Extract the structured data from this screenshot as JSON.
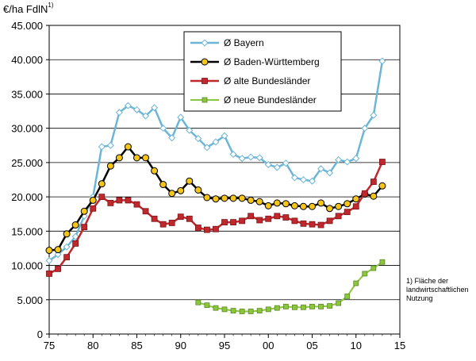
{
  "unit": {
    "text": "€/ha FdlN",
    "sup": "1)"
  },
  "footnote": [
    "1) Fläche der",
    "landwirtschaftlichen",
    "Nutzung"
  ],
  "chart_data": {
    "type": "line",
    "ylim": [
      0,
      45000
    ],
    "xlim": [
      1975,
      2015
    ],
    "grid": true,
    "legend_position": "top-right",
    "xticks": [
      {
        "value": 1975,
        "label": "75"
      },
      {
        "value": 1980,
        "label": "80"
      },
      {
        "value": 1985,
        "label": "85"
      },
      {
        "value": 1990,
        "label": "90"
      },
      {
        "value": 1995,
        "label": "95"
      },
      {
        "value": 2000,
        "label": "00"
      },
      {
        "value": 2005,
        "label": "05"
      },
      {
        "value": 2010,
        "label": "10"
      },
      {
        "value": 2015,
        "label": "15"
      }
    ],
    "yticks": [
      {
        "value": 0,
        "label": "0"
      },
      {
        "value": 5000,
        "label": "5.000"
      },
      {
        "value": 10000,
        "label": "10.000"
      },
      {
        "value": 15000,
        "label": "15.000"
      },
      {
        "value": 20000,
        "label": "20.000"
      },
      {
        "value": 25000,
        "label": "25.000"
      },
      {
        "value": 30000,
        "label": "30.000"
      },
      {
        "value": 35000,
        "label": "35.000"
      },
      {
        "value": 40000,
        "label": "40.000"
      },
      {
        "value": 45000,
        "label": "45.000"
      }
    ],
    "series": [
      {
        "name": "Ø Bayern",
        "color": "#6BB5D6",
        "marker": "diamond",
        "marker_fill": "#ffffff",
        "marker_stroke": "#6BB5D6",
        "x": [
          1975,
          1976,
          1977,
          1978,
          1979,
          1980,
          1981,
          1982,
          1983,
          1984,
          1985,
          1986,
          1987,
          1988,
          1989,
          1990,
          1991,
          1992,
          1993,
          1994,
          1995,
          1996,
          1997,
          1998,
          1999,
          2000,
          2001,
          2002,
          2003,
          2004,
          2005,
          2006,
          2007,
          2008,
          2009,
          2010,
          2011,
          2012,
          2013
        ],
        "values": [
          10700,
          11600,
          12700,
          14200,
          17200,
          20000,
          27300,
          27500,
          32300,
          33300,
          32700,
          31800,
          33000,
          30000,
          28600,
          31600,
          29700,
          28500,
          27200,
          28000,
          28900,
          26200,
          25600,
          25800,
          25700,
          24700,
          24300,
          24900,
          22800,
          22500,
          22300,
          24100,
          23500,
          25400,
          25100,
          25600,
          30000,
          31900,
          39800
        ]
      },
      {
        "name": "Ø Baden-Württemberg",
        "color": "#000000",
        "marker": "circle",
        "marker_fill": "#F5C518",
        "marker_stroke": "#000000",
        "x": [
          1975,
          1976,
          1977,
          1978,
          1979,
          1980,
          1981,
          1982,
          1983,
          1984,
          1985,
          1986,
          1987,
          1988,
          1989,
          1990,
          1991,
          1992,
          1993,
          1994,
          1995,
          1996,
          1997,
          1998,
          1999,
          2000,
          2001,
          2002,
          2003,
          2004,
          2005,
          2006,
          2007,
          2008,
          2009,
          2010,
          2011,
          2012,
          2013
        ],
        "values": [
          12200,
          12300,
          14600,
          15900,
          17900,
          19500,
          21900,
          24500,
          25700,
          27300,
          25700,
          25700,
          23800,
          21800,
          20500,
          20900,
          22300,
          21000,
          19900,
          19700,
          19800,
          19800,
          19800,
          19500,
          19300,
          18700,
          19100,
          19000,
          18700,
          18600,
          18600,
          19100,
          18300,
          18600,
          19000,
          19700,
          20400,
          20100,
          21600
        ]
      },
      {
        "name": "Ø alte Bundesländer",
        "color": "#C0282D",
        "marker": "square",
        "marker_fill": "#C0282D",
        "marker_stroke": "#7a1518",
        "x": [
          1975,
          1976,
          1977,
          1978,
          1979,
          1980,
          1981,
          1982,
          1983,
          1984,
          1985,
          1986,
          1987,
          1988,
          1989,
          1990,
          1991,
          1992,
          1993,
          1994,
          1995,
          1996,
          1997,
          1998,
          1999,
          2000,
          2001,
          2002,
          2003,
          2004,
          2005,
          2006,
          2007,
          2008,
          2009,
          2010,
          2011,
          2012,
          2013
        ],
        "values": [
          8800,
          9500,
          11200,
          13200,
          15600,
          18300,
          20000,
          19100,
          19500,
          19500,
          18900,
          17900,
          16800,
          16000,
          16200,
          17100,
          16800,
          15500,
          15200,
          15300,
          16300,
          16300,
          16500,
          17200,
          16600,
          16800,
          17200,
          17000,
          16500,
          16100,
          16000,
          15900,
          16500,
          17200,
          17800,
          18600,
          20500,
          22200,
          25100
        ]
      },
      {
        "name": "Ø neue Bundesländer",
        "color": "#8CC63F",
        "marker": "square",
        "marker_fill": "#8CC63F",
        "marker_stroke": "#5a8a22",
        "x": [
          1992,
          1993,
          1994,
          1995,
          1996,
          1997,
          1998,
          1999,
          2000,
          2001,
          2002,
          2003,
          2004,
          2005,
          2006,
          2007,
          2008,
          2009,
          2010,
          2011,
          2012,
          2013
        ],
        "values": [
          4600,
          4200,
          3800,
          3600,
          3400,
          3300,
          3300,
          3400,
          3600,
          3800,
          4000,
          3900,
          3900,
          4000,
          4000,
          4100,
          4500,
          5500,
          7400,
          8800,
          9600,
          10500
        ]
      }
    ]
  }
}
